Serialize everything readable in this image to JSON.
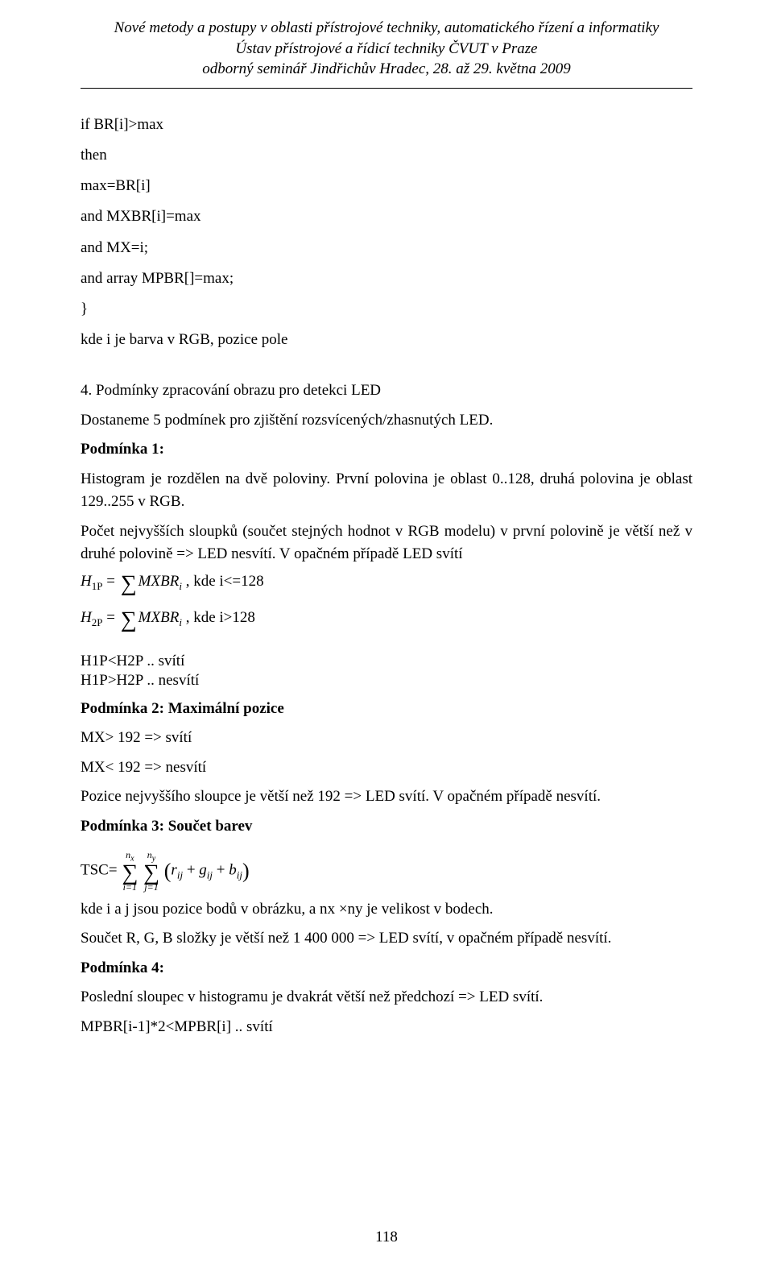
{
  "header": {
    "line1": "Nové metody a postupy v oblasti přístrojové techniky, automatického řízení a informatiky",
    "line2": "Ústav přístrojové a řídicí techniky ČVUT v Praze",
    "line3": "odborný seminář Jindřichův Hradec, 28. až 29. května 2009"
  },
  "code": {
    "l1": "if BR[i]>max",
    "l2": "then",
    "l3": "max=BR[i]",
    "l4": "and MXBR[i]=max",
    "l5": "and MX=i;",
    "l6": "and array MPBR[]=max;",
    "l7": "}",
    "l8": "kde i je barva v RGB, pozice pole"
  },
  "section4": {
    "title": "4. Podmínky zpracování obrazu pro detekci LED",
    "intro": "Dostaneme 5 podmínek pro zjištění rozsvícených/zhasnutých LED."
  },
  "cond1": {
    "title": "Podmínka 1:",
    "p1": "Histogram je rozdělen na dvě poloviny. První polovina je oblast 0..128, druhá polovina je oblast 129..255 v RGB.",
    "p2": "Počet nejvyšších sloupků (součet stejných hodnot v RGB modelu) v první polovině je větší než v druhé polovině => LED nesvítí. V opačném případě LED svítí",
    "eq1_lhs": "H",
    "eq1_sub": "1P",
    "eq1_eq": " = ",
    "eq1_rhs": "MXBR",
    "eq1_i": "i",
    "eq1_tail": " , kde i<=128",
    "eq2_sub": "2P",
    "eq2_tail": " , kde i>128",
    "cmp1": "H",
    "cmp1_s1": "1P",
    "cmp1_mid": "<H",
    "cmp1_s2": "2P",
    "cmp1_tail": " .. svítí",
    "cmp2_mid": ">H",
    "cmp2_tail": " .. nesvítí"
  },
  "cond2": {
    "title": "Podmínka 2: Maximální pozice",
    "l1": "MX> 192 => svítí",
    "l2": "MX< 192 => nesvítí",
    "l3": "Pozice nejvyššího sloupce je větší než 192 => LED svítí. V opačném případě nesvítí."
  },
  "cond3": {
    "title": "Podmínka 3: Součet barev",
    "tsc_label": "TSC=",
    "sum1_top": "n",
    "sum1_top_sub": "x",
    "sum2_top": "n",
    "sum2_top_sub": "y",
    "sum1_bot": "i=1",
    "sum2_bot": "j=1",
    "term_r": "r",
    "term_g": "g",
    "term_b": "b",
    "term_sub": "ij",
    "after1": "kde i a j jsou pozice bodů v obrázku, a n",
    "after1_subx": "x",
    "after1_mid": " ×n",
    "after1_suby": "y",
    "after1_tail": " je velikost v bodech.",
    "after2": "Součet R, G, B složky je větší než 1 400 000 => LED svítí, v opačném případě nesvítí."
  },
  "cond4": {
    "title": "Podmínka 4:",
    "l1": "Poslední sloupec v histogramu je dvakrát větší než předchozí => LED svítí.",
    "l2": "MPBR[i-1]*2<MPBR[i] .. svítí"
  },
  "pagenum": "118"
}
